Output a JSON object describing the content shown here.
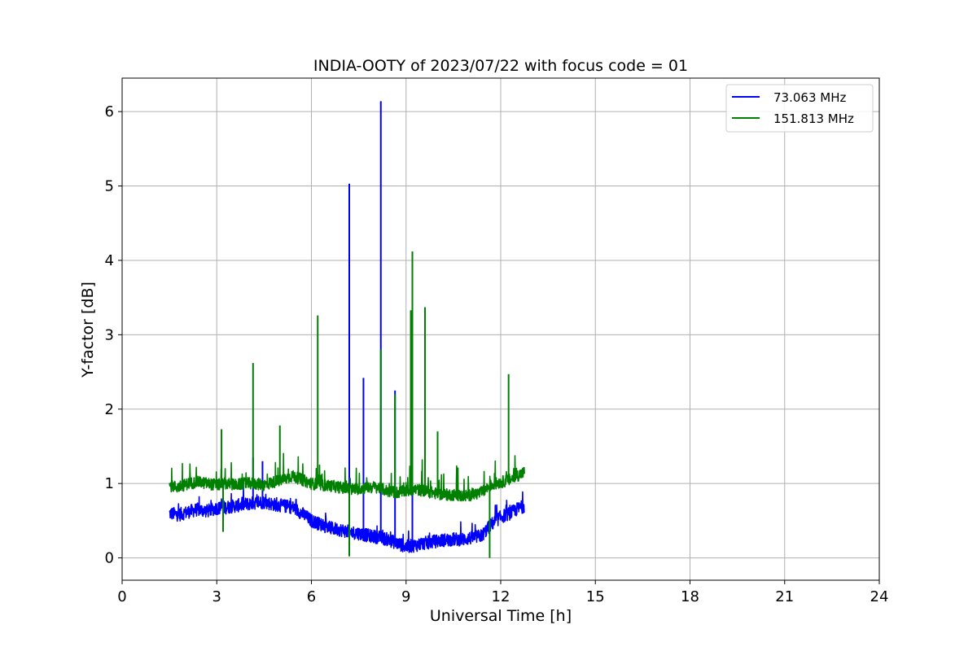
{
  "chart_data": {
    "type": "line",
    "title": "INDIA-OOTY of 2023/07/22 with focus code = 01",
    "xlabel": "Universal Time [h]",
    "ylabel": "Y-factor [dB]",
    "xlim": [
      0,
      24
    ],
    "ylim": [
      -0.3,
      6.45
    ],
    "xticks": [
      0,
      3,
      6,
      9,
      12,
      15,
      18,
      21,
      24
    ],
    "yticks": [
      0,
      1,
      2,
      3,
      4,
      5,
      6
    ],
    "grid": true,
    "legend_position": "top-right",
    "series": [
      {
        "name": "  73.063 MHz",
        "color": "#0000ff",
        "x": [
          1.5,
          1.8,
          2.1,
          2.4,
          2.7,
          3.0,
          3.3,
          3.6,
          3.9,
          4.2,
          4.5,
          4.8,
          5.1,
          5.4,
          5.7,
          6.0,
          6.3,
          6.6,
          6.9,
          7.2,
          7.5,
          7.8,
          8.1,
          8.4,
          8.7,
          9.0,
          9.3,
          9.6,
          9.9,
          10.2,
          10.5,
          10.8,
          11.1,
          11.4,
          11.7,
          12.0,
          12.3,
          12.5,
          12.75
        ],
        "y": [
          0.6,
          0.58,
          0.62,
          0.65,
          0.63,
          0.67,
          0.68,
          0.7,
          0.72,
          0.74,
          0.75,
          0.72,
          0.7,
          0.68,
          0.6,
          0.5,
          0.45,
          0.4,
          0.38,
          0.35,
          0.33,
          0.3,
          0.28,
          0.25,
          0.2,
          0.15,
          0.17,
          0.2,
          0.22,
          0.24,
          0.25,
          0.25,
          0.27,
          0.3,
          0.45,
          0.55,
          0.6,
          0.65,
          0.7
        ],
        "spikes": [
          {
            "x": 7.2,
            "y": 5.03
          },
          {
            "x": 8.2,
            "y": 6.14
          },
          {
            "x": 7.65,
            "y": 2.42
          },
          {
            "x": 8.65,
            "y": 2.25
          },
          {
            "x": 4.15,
            "y": 1.35
          },
          {
            "x": 4.45,
            "y": 1.3
          },
          {
            "x": 9.2,
            "y": 0.95
          }
        ]
      },
      {
        "name": "151.813 MHz",
        "color": "#008000",
        "x": [
          1.5,
          1.8,
          2.1,
          2.4,
          2.7,
          3.0,
          3.3,
          3.6,
          3.9,
          4.2,
          4.5,
          4.8,
          5.1,
          5.4,
          5.7,
          6.0,
          6.3,
          6.6,
          6.9,
          7.2,
          7.5,
          7.8,
          8.1,
          8.4,
          8.7,
          9.0,
          9.3,
          9.6,
          9.9,
          10.2,
          10.5,
          10.8,
          11.1,
          11.4,
          11.7,
          12.0,
          12.3,
          12.5,
          12.75
        ],
        "y": [
          0.97,
          0.95,
          1.0,
          1.02,
          1.0,
          0.98,
          1.0,
          0.98,
          1.0,
          1.0,
          0.98,
          1.02,
          1.05,
          1.1,
          1.05,
          1.0,
          0.98,
          0.97,
          0.95,
          0.92,
          0.93,
          0.95,
          0.95,
          0.9,
          0.88,
          0.9,
          0.92,
          0.9,
          0.87,
          0.85,
          0.85,
          0.83,
          0.85,
          0.88,
          0.98,
          1.02,
          1.05,
          1.1,
          1.15
        ],
        "spikes": [
          {
            "x": 4.15,
            "y": 2.62
          },
          {
            "x": 6.2,
            "y": 3.26
          },
          {
            "x": 8.2,
            "y": 2.8
          },
          {
            "x": 9.2,
            "y": 4.12
          },
          {
            "x": 9.15,
            "y": 3.33
          },
          {
            "x": 9.6,
            "y": 3.37
          },
          {
            "x": 12.25,
            "y": 2.47
          },
          {
            "x": 8.65,
            "y": 2.2
          },
          {
            "x": 3.15,
            "y": 1.73
          },
          {
            "x": 5.0,
            "y": 1.78
          },
          {
            "x": 10.0,
            "y": 1.7
          },
          {
            "x": 7.2,
            "y": 0.02
          },
          {
            "x": 11.65,
            "y": 0.0
          },
          {
            "x": 3.2,
            "y": 0.35
          }
        ]
      }
    ]
  }
}
